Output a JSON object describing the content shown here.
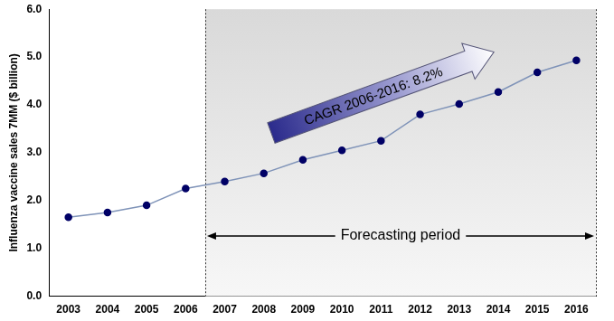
{
  "chart_data": {
    "type": "line",
    "y_label": "Influenza vaccine sales 7MM ($ billion)",
    "categories": [
      "2003",
      "2004",
      "2005",
      "2006",
      "2007",
      "2008",
      "2009",
      "2010",
      "2011",
      "2012",
      "2013",
      "2014",
      "2015",
      "2016"
    ],
    "values": [
      1.65,
      1.75,
      1.9,
      2.25,
      2.4,
      2.57,
      2.85,
      3.05,
      3.25,
      3.8,
      4.02,
      4.27,
      4.68,
      4.93
    ],
    "color": "#000066",
    "marker": "circle",
    "ylim": [
      0,
      6
    ],
    "yticks": [
      {
        "value": 0,
        "label": "0.0"
      },
      {
        "value": 1,
        "label": "1.0"
      },
      {
        "value": 2,
        "label": "2.0"
      },
      {
        "value": 3,
        "label": "3.0"
      },
      {
        "value": 4,
        "label": "4.0"
      },
      {
        "value": 5,
        "label": "5.0"
      },
      {
        "value": 6,
        "label": "6.0"
      }
    ],
    "grid": false,
    "annotations": [
      {
        "text": "CAGR 2006-2016: 8.2%"
      },
      {
        "text": "Forecasting period",
        "from": "2007",
        "to": "2016"
      }
    ]
  }
}
